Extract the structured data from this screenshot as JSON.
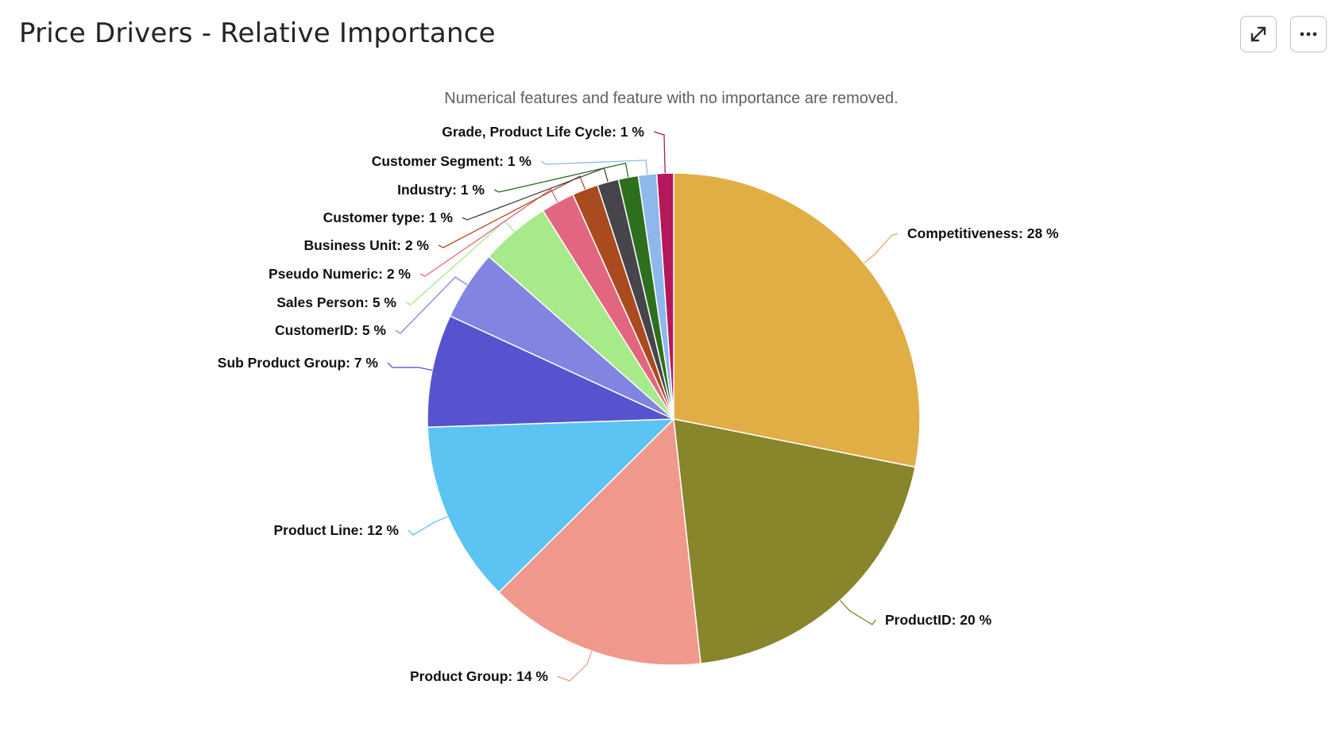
{
  "panel": {
    "title": "Price Drivers - Relative Importance",
    "expand_icon": "expand-arrows-icon",
    "more_icon": "more-dots-icon"
  },
  "chart_data": {
    "type": "pie",
    "title": "Price Drivers - Relative Importance",
    "subtitle": "Numerical features and feature with no importance are removed.",
    "slices": [
      {
        "name": "Competitiveness",
        "value": 28.1,
        "label": "Competitiveness: 28 %",
        "color": "#E1AE45"
      },
      {
        "name": "ProductID",
        "value": 20.1,
        "label": "ProductID: 20 %",
        "color": "#88852A"
      },
      {
        "name": "Product Group",
        "value": 14.3,
        "label": "Product Group: 14 %",
        "color": "#F0988B"
      },
      {
        "name": "Product Line",
        "value": 11.9,
        "label": "Product Line: 12 %",
        "color": "#5BC4F2"
      },
      {
        "name": "Sub Product Group",
        "value": 7.4,
        "label": "Sub Product Group: 7 %",
        "color": "#5753CF"
      },
      {
        "name": "CustomerID",
        "value": 4.6,
        "label": "CustomerID: 5 %",
        "color": "#8284E2"
      },
      {
        "name": "Sales Person",
        "value": 4.6,
        "label": "Sales Person: 5 %",
        "color": "#A7EA89"
      },
      {
        "name": "Pseudo Numeric",
        "value": 2.2,
        "label": "Pseudo Numeric: 2 %",
        "color": "#E36680"
      },
      {
        "name": "Business Unit",
        "value": 1.7,
        "label": "Business Unit: 2 %",
        "color": "#A94B1E"
      },
      {
        "name": "Customer type",
        "value": 1.4,
        "label": "Customer type: 1 %",
        "color": "#46454C"
      },
      {
        "name": "Industry",
        "value": 1.3,
        "label": "Industry: 1 %",
        "color": "#2E6F1E"
      },
      {
        "name": "Customer Segment",
        "value": 1.2,
        "label": "Customer Segment: 1 %",
        "color": "#8DB8EC"
      },
      {
        "name": "Grade, Product Life Cycle",
        "value": 1.1,
        "label": "Grade, Product Life Cycle: 1 %",
        "color": "#B5185A"
      }
    ]
  }
}
